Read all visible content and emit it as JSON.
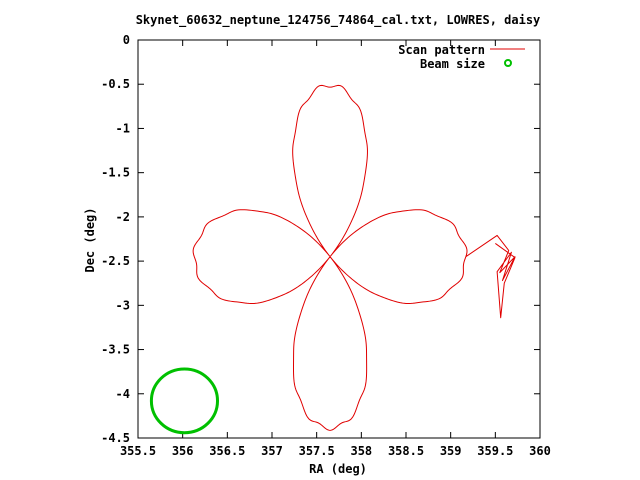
{
  "chart_data": {
    "type": "line",
    "title": "Skynet_60632_neptune_124756_74864_cal.txt, LOWRES, daisy",
    "xlabel": "RA (deg)",
    "ylabel": "Dec (deg)",
    "xlim": [
      355.5,
      360
    ],
    "ylim": [
      -4.5,
      0
    ],
    "x_ticks": [
      355.5,
      356,
      356.5,
      357,
      357.5,
      358,
      358.5,
      359,
      359.5,
      360
    ],
    "x_tick_labels": [
      "355.5",
      "356",
      "356.5",
      "357",
      "357.5",
      "358",
      "358.5",
      "359",
      "359.5",
      "360"
    ],
    "y_ticks": [
      0,
      -0.5,
      -1,
      -1.5,
      -2,
      -2.5,
      -3,
      -3.5,
      -4,
      -4.5
    ],
    "y_tick_labels": [
      "0",
      "-0.5",
      "-1",
      "-1.5",
      "-2",
      "-2.5",
      "-3",
      "-3.5",
      "-4",
      "-4.5"
    ],
    "grid": false,
    "legend_position": "top-right",
    "series": [
      {
        "name": "Scan pattern",
        "style": "line",
        "color": "#e00000",
        "daisy": {
          "center_ra": 357.65,
          "center_dec": -2.45,
          "ra_radius": 1.52,
          "dec_radius": 1.94,
          "petals": 4
        },
        "tail_points": [
          [
            359.52,
            -2.21
          ],
          [
            359.65,
            -2.38
          ],
          [
            359.55,
            -2.63
          ],
          [
            359.72,
            -2.45
          ],
          [
            359.58,
            -2.72
          ],
          [
            359.68,
            -2.4
          ],
          [
            359.52,
            -2.62
          ],
          [
            359.56,
            -3.14
          ],
          [
            359.6,
            -2.75
          ],
          [
            359.72,
            -2.46
          ],
          [
            359.5,
            -2.3
          ]
        ]
      },
      {
        "name": "Beam size",
        "style": "circle",
        "color": "#00c000",
        "center": [
          356.02,
          -4.08
        ],
        "ra_radius": 0.37,
        "dec_radius": 0.36
      }
    ]
  }
}
